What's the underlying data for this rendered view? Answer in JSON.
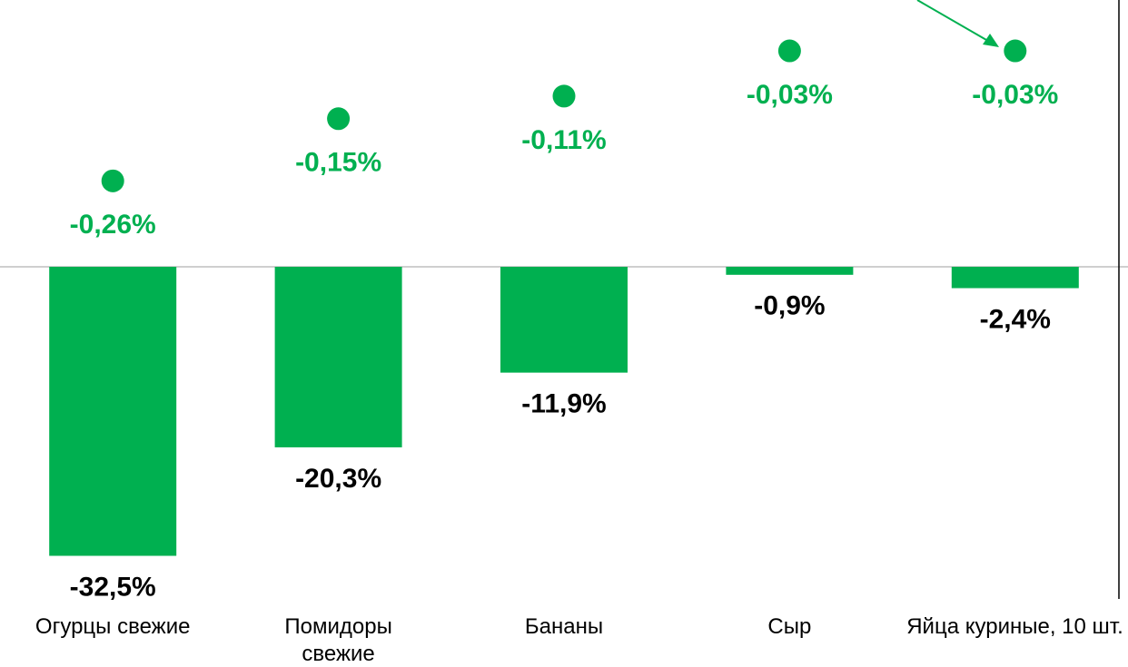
{
  "chart_data": {
    "type": "bar",
    "categories": [
      "Огурцы свежие",
      "Помидоры свежие",
      "Бананы",
      "Сыр",
      "Яйца куриные, 10 шт."
    ],
    "series": [
      {
        "color": "#00b050",
        "values": [
          -32.5,
          -20.3,
          -11.9,
          -0.9,
          -2.4
        ],
        "value_labels": [
          "-32,5%",
          "-20,3%",
          "-11,9%",
          "-0,9%",
          "-2,4%"
        ]
      },
      {
        "color": "#00b050",
        "axis": "y2",
        "values": [
          -0.26,
          -0.15,
          -0.11,
          -0.03,
          -0.03
        ],
        "value_labels": [
          "-0,26%",
          "-0,15%",
          "-0,11%",
          "-0,03%",
          "-0,03%"
        ]
      }
    ],
    "ylim": [
      -45,
      30
    ],
    "y2lim": [
      -1.12,
      0.06
    ]
  }
}
